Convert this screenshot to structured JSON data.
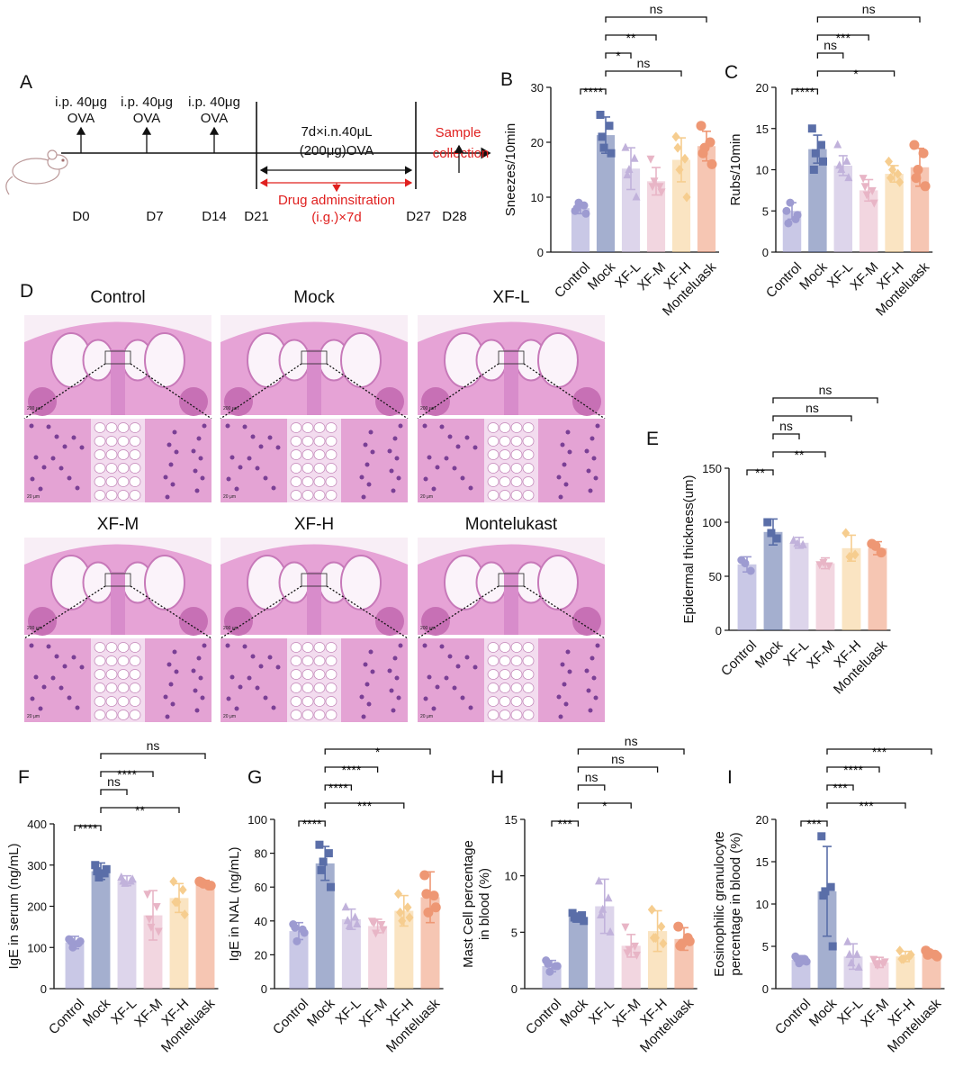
{
  "timeline": {
    "letter": "A",
    "injection": [
      "i.p. 40μg",
      "OVA"
    ],
    "days": [
      "D0",
      "D7",
      "D14",
      "D21",
      "D27",
      "D28"
    ],
    "challenge": [
      "7d×i.n.40μL",
      "(200μg)OVA"
    ],
    "drug": [
      "Drug adminsitration",
      "(i.g.)×7d"
    ],
    "sample": [
      "Sample",
      "collection"
    ]
  },
  "histology": {
    "letter": "D",
    "groups": [
      "Control",
      "Mock",
      "XF-L",
      "XF-M",
      "XF-H",
      "Montelukast"
    ],
    "scale_bars": [
      "200 μm",
      "20 μm"
    ]
  },
  "chart_data": [
    {
      "type": "bar",
      "letter": "B",
      "ylabel": [
        "Sneezes/10min"
      ],
      "categories": [
        "Control",
        "Mock",
        "XF-L",
        "XF-M",
        "XF-H",
        "Monteluask"
      ],
      "colors": [
        "#9d9bd1",
        "#5a6ea8",
        "#c1b2db",
        "#e8b5c6",
        "#f6cd8f",
        "#ee9774"
      ],
      "values": [
        8,
        21.3,
        15.2,
        12.9,
        16.8,
        19.3
      ],
      "errors": [
        1,
        3.3,
        3.8,
        2.5,
        4,
        2.7
      ],
      "points": [
        [
          7.5,
          8.5,
          9,
          7,
          8
        ],
        [
          25,
          23,
          19,
          18,
          21
        ],
        [
          19,
          17,
          15,
          10,
          14
        ],
        [
          17,
          12,
          13,
          11,
          12
        ],
        [
          21,
          17,
          15,
          10,
          19
        ],
        [
          23,
          20,
          19,
          16,
          18
        ]
      ],
      "ylim": [
        0,
        30
      ],
      "yticks": [
        0,
        10,
        20,
        30
      ],
      "brackets": [
        {
          "from": 0,
          "to": 1,
          "label": "****"
        },
        {
          "from": 1,
          "to": 4,
          "label": "ns"
        },
        {
          "from": 1,
          "to": 2,
          "label": "*"
        },
        {
          "from": 1,
          "to": 3,
          "label": "**"
        },
        {
          "from": 1,
          "to": 5,
          "label": "ns"
        }
      ]
    },
    {
      "type": "bar",
      "letter": "C",
      "ylabel": [
        "Rubs/10min"
      ],
      "categories": [
        "Control",
        "Mock",
        "XF-L",
        "XF-M",
        "XF-H",
        "Monteluask"
      ],
      "colors": [
        "#9d9bd1",
        "#5a6ea8",
        "#c1b2db",
        "#e8b5c6",
        "#f6cd8f",
        "#ee9774"
      ],
      "values": [
        5,
        12.5,
        10.5,
        7.5,
        9.5,
        10.3
      ],
      "errors": [
        1,
        1.7,
        1.2,
        1.3,
        1,
        2.3
      ],
      "points": [
        [
          5,
          4,
          6,
          4.5,
          3.5
        ],
        [
          15,
          13,
          12,
          11,
          10
        ],
        [
          13,
          11,
          10,
          9,
          10.5
        ],
        [
          9,
          7.5,
          7,
          6,
          8
        ],
        [
          11,
          9.5,
          10,
          8.5,
          9
        ],
        [
          13,
          12,
          10,
          8,
          9
        ]
      ],
      "ylim": [
        0,
        20
      ],
      "yticks": [
        0,
        5,
        10,
        15,
        20
      ],
      "brackets": [
        {
          "from": 0,
          "to": 1,
          "label": "****"
        },
        {
          "from": 1,
          "to": 4,
          "label": "*"
        },
        {
          "from": 1,
          "to": 2,
          "label": "ns"
        },
        {
          "from": 1,
          "to": 3,
          "label": "***"
        },
        {
          "from": 1,
          "to": 5,
          "label": "ns"
        }
      ]
    },
    {
      "type": "bar",
      "letter": "E",
      "ylabel": [
        "Epidermal thickness(um)"
      ],
      "categories": [
        "Control",
        "Mock",
        "XF-L",
        "XF-M",
        "XF-H",
        "Monteluask"
      ],
      "colors": [
        "#9d9bd1",
        "#5a6ea8",
        "#c1b2db",
        "#e8b5c6",
        "#f6cd8f",
        "#ee9774"
      ],
      "values": [
        61,
        91,
        81,
        62,
        76,
        76
      ],
      "errors": [
        7,
        12,
        5,
        5,
        12,
        6
      ],
      "points": [
        [
          65,
          55,
          62
        ],
        [
          100,
          85,
          90
        ],
        [
          83,
          79,
          80
        ],
        [
          61,
          60,
          63
        ],
        [
          90,
          70,
          68
        ],
        [
          80,
          72,
          78
        ]
      ],
      "ylim": [
        0,
        150
      ],
      "yticks": [
        0,
        50,
        100,
        150
      ],
      "brackets": [
        {
          "from": 0,
          "to": 1,
          "label": "**"
        },
        {
          "from": 1,
          "to": 3,
          "label": "**"
        },
        {
          "from": 1,
          "to": 2,
          "label": "ns"
        },
        {
          "from": 1,
          "to": 4,
          "label": "ns"
        },
        {
          "from": 1,
          "to": 5,
          "label": "ns"
        }
      ]
    },
    {
      "type": "bar",
      "letter": "F",
      "ylabel": [
        "IgE in serum (ng/mL)"
      ],
      "categories": [
        "Control",
        "Mock",
        "XF-L",
        "XF-M",
        "XF-H",
        "Monteluask"
      ],
      "colors": [
        "#9d9bd1",
        "#5a6ea8",
        "#c1b2db",
        "#e8b5c6",
        "#f6cd8f",
        "#ee9774"
      ],
      "values": [
        112,
        285,
        262,
        178,
        220,
        255
      ],
      "errors": [
        15,
        20,
        12,
        60,
        35,
        8
      ],
      "points": [
        [
          120,
          110,
          100,
          115,
          115
        ],
        [
          300,
          280,
          270,
          290,
          285
        ],
        [
          270,
          260,
          255,
          265,
          260
        ],
        [
          230,
          200,
          150,
          140,
          170
        ],
        [
          260,
          240,
          210,
          180,
          210
        ],
        [
          260,
          250,
          255,
          250,
          258
        ]
      ],
      "ylim": [
        0,
        400
      ],
      "yticks": [
        0,
        100,
        200,
        300,
        400
      ],
      "brackets": [
        {
          "from": 0,
          "to": 1,
          "label": "****"
        },
        {
          "from": 1,
          "to": 4,
          "label": "**"
        },
        {
          "from": 1,
          "to": 2,
          "label": "ns"
        },
        {
          "from": 1,
          "to": 3,
          "label": "****"
        },
        {
          "from": 1,
          "to": 5,
          "label": "ns"
        }
      ]
    },
    {
      "type": "bar",
      "letter": "G",
      "ylabel": [
        "IgE in NAL (ng/mL)"
      ],
      "categories": [
        "Control",
        "Mock",
        "XF-L",
        "XF-M",
        "XF-H",
        "Monteluask"
      ],
      "colors": [
        "#9d9bd1",
        "#5a6ea8",
        "#c1b2db",
        "#e8b5c6",
        "#f6cd8f",
        "#ee9774"
      ],
      "values": [
        34,
        74,
        41,
        37,
        46,
        54
      ],
      "errors": [
        5,
        10,
        6,
        4,
        9,
        15
      ],
      "points": [
        [
          38,
          35,
          28,
          33,
          36
        ],
        [
          85,
          80,
          75,
          60,
          70
        ],
        [
          48,
          42,
          37,
          38,
          40
        ],
        [
          40,
          38,
          33,
          35,
          39
        ],
        [
          56,
          48,
          40,
          42,
          45
        ],
        [
          67,
          55,
          45,
          48,
          56
        ]
      ],
      "ylim": [
        0,
        100
      ],
      "yticks": [
        0,
        20,
        40,
        60,
        80,
        100
      ],
      "brackets": [
        {
          "from": 0,
          "to": 1,
          "label": "****"
        },
        {
          "from": 1,
          "to": 4,
          "label": "***"
        },
        {
          "from": 1,
          "to": 2,
          "label": "****"
        },
        {
          "from": 1,
          "to": 3,
          "label": "****"
        },
        {
          "from": 1,
          "to": 5,
          "label": "*"
        }
      ]
    },
    {
      "type": "bar",
      "letter": "H",
      "ylabel": [
        "Mast Cell percentage",
        "in blood (%)"
      ],
      "categories": [
        "Control",
        "Mock",
        "XF-L",
        "XF-M",
        "XF-H",
        "Monteluask"
      ],
      "colors": [
        "#9d9bd1",
        "#5a6ea8",
        "#c1b2db",
        "#e8b5c6",
        "#f6cd8f",
        "#ee9774"
      ],
      "values": [
        2,
        6.3,
        7.3,
        3.8,
        5.1,
        4.4
      ],
      "errors": [
        0.5,
        0.4,
        2.4,
        1,
        1.8,
        1
      ],
      "points": [
        [
          2.5,
          2,
          1.5,
          2,
          2.2
        ],
        [
          6.7,
          6.5,
          6.2,
          6,
          6.3
        ],
        [
          9.5,
          8,
          7,
          5,
          6.5
        ],
        [
          5.5,
          3.8,
          3.5,
          3,
          3.2
        ],
        [
          7,
          5.5,
          4.5,
          4,
          4.5
        ],
        [
          5.5,
          4.5,
          4,
          4.2,
          3.8
        ]
      ],
      "ylim": [
        0,
        15
      ],
      "yticks": [
        0,
        5,
        10,
        15
      ],
      "brackets": [
        {
          "from": 0,
          "to": 1,
          "label": "***"
        },
        {
          "from": 1,
          "to": 3,
          "label": "*"
        },
        {
          "from": 1,
          "to": 2,
          "label": "ns"
        },
        {
          "from": 1,
          "to": 4,
          "label": "ns"
        },
        {
          "from": 1,
          "to": 5,
          "label": "ns"
        }
      ]
    },
    {
      "type": "bar",
      "letter": "I",
      "ylabel": [
        "Eosinophilic granulocyte",
        "percentage in blood (%)"
      ],
      "categories": [
        "Control",
        "Mock",
        "XF-L",
        "XF-M",
        "XF-H",
        "Monteluask"
      ],
      "colors": [
        "#9d9bd1",
        "#5a6ea8",
        "#c1b2db",
        "#e8b5c6",
        "#f6cd8f",
        "#ee9774"
      ],
      "values": [
        3.4,
        11.5,
        3.8,
        3.1,
        3.8,
        4.1
      ],
      "errors": [
        0.5,
        5.3,
        1.5,
        0.6,
        0.6,
        0.4
      ],
      "points": [
        [
          3.8,
          3.5,
          3,
          3.2,
          3.5
        ],
        [
          18,
          12,
          11.5,
          5,
          11
        ],
        [
          5.5,
          4,
          3,
          2.5,
          4
        ],
        [
          3.5,
          3,
          2.8,
          3.2,
          3
        ],
        [
          4.5,
          3.8,
          3.5,
          4,
          3.5
        ],
        [
          4.5,
          4,
          4.2,
          3.8,
          4
        ]
      ],
      "ylim": [
        0,
        20
      ],
      "yticks": [
        0,
        5,
        10,
        15,
        20
      ],
      "brackets": [
        {
          "from": 0,
          "to": 1,
          "label": "***"
        },
        {
          "from": 1,
          "to": 4,
          "label": "***"
        },
        {
          "from": 1,
          "to": 2,
          "label": "***"
        },
        {
          "from": 1,
          "to": 3,
          "label": "****"
        },
        {
          "from": 1,
          "to": 5,
          "label": "***"
        }
      ]
    }
  ]
}
